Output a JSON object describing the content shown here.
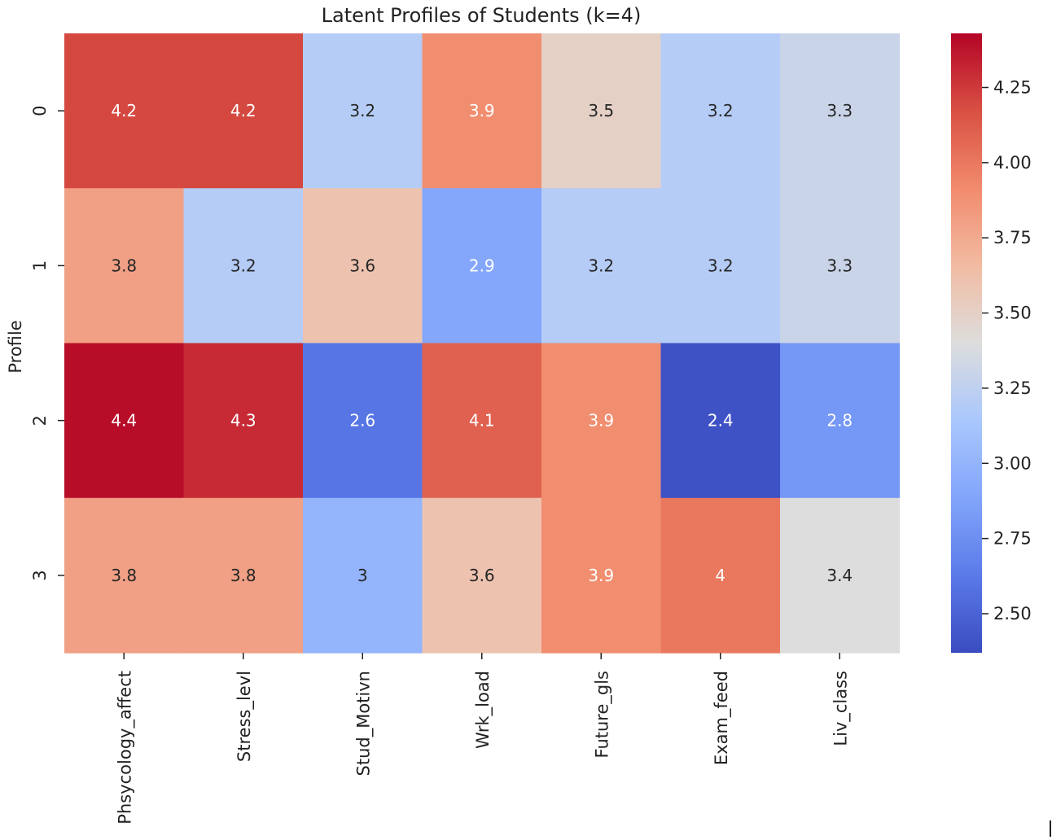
{
  "chart_data": {
    "type": "heatmap",
    "title": "Latent Profiles of Students (k=4)",
    "xlabel": "",
    "ylabel": "Profile",
    "columns": [
      "Phsycology_affect",
      "Stress_levl",
      "Stud_Motivn",
      "Wrk_load",
      "Future_gls",
      "Exam_feed",
      "Liv_class"
    ],
    "rows": [
      "0",
      "1",
      "2",
      "3"
    ],
    "values": [
      [
        4.2,
        4.2,
        3.2,
        3.9,
        3.5,
        3.2,
        3.3
      ],
      [
        3.8,
        3.2,
        3.6,
        2.9,
        3.2,
        3.2,
        3.3
      ],
      [
        4.4,
        4.3,
        2.6,
        4.1,
        3.9,
        2.4,
        2.8
      ],
      [
        3.8,
        3.8,
        3.0,
        3.6,
        3.9,
        4.0,
        3.4
      ]
    ],
    "annotations": [
      [
        "4.2",
        "4.2",
        "3.2",
        "3.9",
        "3.5",
        "3.2",
        "3.3"
      ],
      [
        "3.8",
        "3.2",
        "3.6",
        "2.9",
        "3.2",
        "3.2",
        "3.3"
      ],
      [
        "4.4",
        "4.3",
        "2.6",
        "4.1",
        "3.9",
        "2.4",
        "2.8"
      ],
      [
        "3.8",
        "3.8",
        "3",
        "3.6",
        "3.9",
        "4",
        "3.4"
      ]
    ],
    "colormap": "coolwarm",
    "colorbar": {
      "min": 2.37,
      "max": 4.43,
      "ticks": [
        2.5,
        2.75,
        3.0,
        3.25,
        3.5,
        3.75,
        4.0,
        4.25
      ],
      "tick_labels": [
        "2.50",
        "2.75",
        "3.00",
        "3.25",
        "3.50",
        "3.75",
        "4.00",
        "4.25"
      ]
    }
  }
}
